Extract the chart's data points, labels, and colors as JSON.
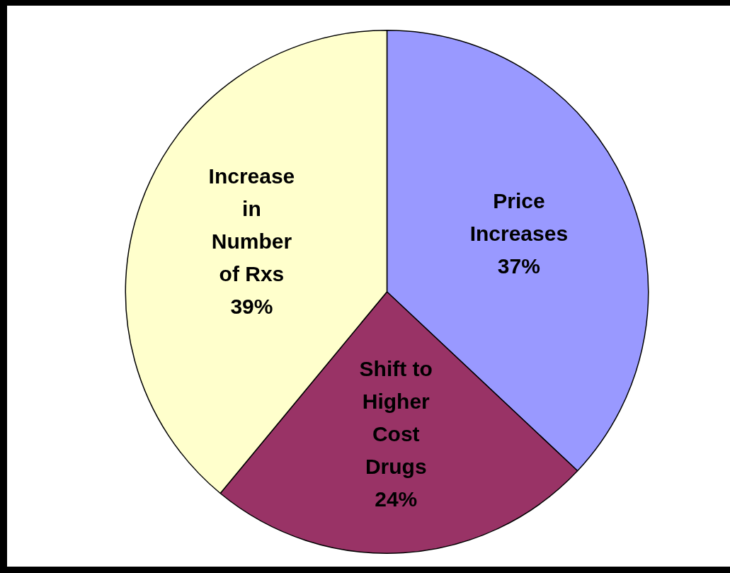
{
  "chart_data": {
    "type": "pie",
    "categories": [
      "Price Increases",
      "Shift to Higher Cost Drugs",
      "Increase in Number of Rxs"
    ],
    "values": [
      37,
      24,
      39
    ],
    "colors": [
      "#9999ff",
      "#993366",
      "#ffffcc"
    ],
    "value_labels": [
      "37%",
      "24%",
      "39%"
    ],
    "legend": false
  }
}
